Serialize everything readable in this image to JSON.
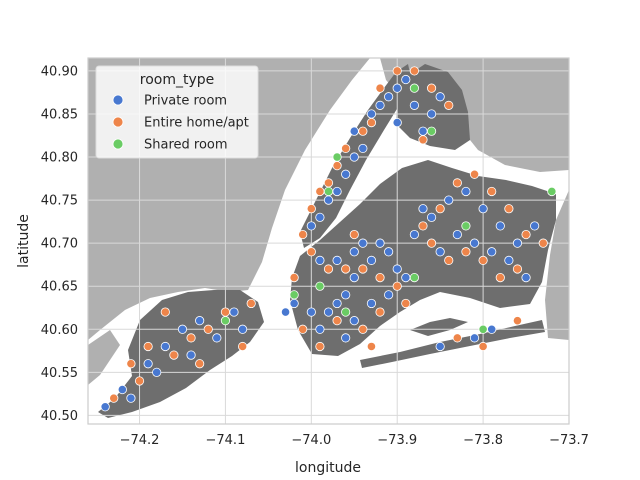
{
  "chart_data": {
    "type": "scatter",
    "title": "",
    "xlabel": "longitude",
    "ylabel": "latitude",
    "xlim": [
      -74.26,
      -73.7
    ],
    "ylim": [
      40.49,
      40.915
    ],
    "x_ticks": [
      -74.2,
      -74.1,
      -74.0,
      -73.9,
      -73.8,
      -73.7
    ],
    "x_tick_labels": [
      "−74.2",
      "−74.1",
      "−74.0",
      "−73.9",
      "−73.8",
      "−73.7"
    ],
    "y_ticks": [
      40.5,
      40.55,
      40.6,
      40.65,
      40.7,
      40.75,
      40.8,
      40.85,
      40.9
    ],
    "y_tick_labels": [
      "40.50",
      "40.55",
      "40.60",
      "40.65",
      "40.70",
      "40.75",
      "40.80",
      "40.85",
      "40.90"
    ],
    "grid": true,
    "background": "map of New York City",
    "legend": {
      "title": "room_type",
      "placement": "top-left"
    },
    "series": [
      {
        "name": "Private room",
        "color": "#4878d0",
        "points": [
          [
            -74.24,
            40.51
          ],
          [
            -74.22,
            40.53
          ],
          [
            -74.19,
            40.56
          ],
          [
            -74.17,
            40.58
          ],
          [
            -74.15,
            40.6
          ],
          [
            -74.13,
            40.61
          ],
          [
            -74.11,
            40.59
          ],
          [
            -74.09,
            40.62
          ],
          [
            -74.08,
            40.6
          ],
          [
            -74.18,
            40.55
          ],
          [
            -74.21,
            40.52
          ],
          [
            -74.14,
            40.57
          ],
          [
            -74.0,
            40.72
          ],
          [
            -73.99,
            40.73
          ],
          [
            -73.98,
            40.75
          ],
          [
            -73.97,
            40.76
          ],
          [
            -73.96,
            40.78
          ],
          [
            -73.95,
            40.8
          ],
          [
            -73.94,
            40.81
          ],
          [
            -73.95,
            40.83
          ],
          [
            -73.93,
            40.85
          ],
          [
            -73.92,
            40.86
          ],
          [
            -73.91,
            40.87
          ],
          [
            -73.9,
            40.88
          ],
          [
            -73.89,
            40.89
          ],
          [
            -73.88,
            40.86
          ],
          [
            -73.9,
            40.84
          ],
          [
            -73.87,
            40.83
          ],
          [
            -73.86,
            40.85
          ],
          [
            -73.85,
            40.87
          ],
          [
            -73.99,
            40.68
          ],
          [
            -73.97,
            40.68
          ],
          [
            -73.95,
            40.69
          ],
          [
            -73.94,
            40.7
          ],
          [
            -73.93,
            40.68
          ],
          [
            -73.92,
            40.7
          ],
          [
            -73.91,
            40.69
          ],
          [
            -73.9,
            40.67
          ],
          [
            -73.95,
            40.66
          ],
          [
            -73.96,
            40.64
          ],
          [
            -73.97,
            40.63
          ],
          [
            -73.98,
            40.62
          ],
          [
            -74.0,
            40.62
          ],
          [
            -74.02,
            40.63
          ],
          [
            -74.03,
            40.62
          ],
          [
            -73.99,
            40.6
          ],
          [
            -73.96,
            40.59
          ],
          [
            -73.95,
            40.61
          ],
          [
            -73.93,
            40.63
          ],
          [
            -73.91,
            40.64
          ],
          [
            -73.89,
            40.66
          ],
          [
            -73.88,
            40.71
          ],
          [
            -73.86,
            40.73
          ],
          [
            -73.84,
            40.75
          ],
          [
            -73.82,
            40.76
          ],
          [
            -73.8,
            40.74
          ],
          [
            -73.78,
            40.72
          ],
          [
            -73.76,
            40.7
          ],
          [
            -73.77,
            40.68
          ],
          [
            -73.79,
            40.69
          ],
          [
            -73.81,
            40.7
          ],
          [
            -73.83,
            40.71
          ],
          [
            -73.85,
            40.69
          ],
          [
            -73.87,
            40.74
          ],
          [
            -73.75,
            40.66
          ],
          [
            -73.74,
            40.72
          ],
          [
            -73.79,
            40.6
          ],
          [
            -73.81,
            40.59
          ],
          [
            -73.85,
            40.58
          ]
        ]
      },
      {
        "name": "Entire home/apt",
        "color": "#ee854a",
        "points": [
          [
            -74.23,
            40.52
          ],
          [
            -74.2,
            40.54
          ],
          [
            -74.16,
            40.57
          ],
          [
            -74.14,
            40.59
          ],
          [
            -74.12,
            40.6
          ],
          [
            -74.1,
            40.62
          ],
          [
            -74.07,
            40.63
          ],
          [
            -74.19,
            40.58
          ],
          [
            -74.17,
            40.62
          ],
          [
            -74.21,
            40.56
          ],
          [
            -74.13,
            40.56
          ],
          [
            -74.08,
            40.58
          ],
          [
            -74.01,
            40.71
          ],
          [
            -74.0,
            40.74
          ],
          [
            -73.99,
            40.76
          ],
          [
            -73.98,
            40.77
          ],
          [
            -73.97,
            40.79
          ],
          [
            -73.96,
            40.81
          ],
          [
            -73.94,
            40.83
          ],
          [
            -73.93,
            40.84
          ],
          [
            -73.92,
            40.88
          ],
          [
            -73.9,
            40.9
          ],
          [
            -73.88,
            40.9
          ],
          [
            -73.86,
            40.88
          ],
          [
            -73.84,
            40.86
          ],
          [
            -73.87,
            40.82
          ],
          [
            -74.0,
            40.69
          ],
          [
            -73.98,
            40.67
          ],
          [
            -73.96,
            40.67
          ],
          [
            -73.94,
            40.67
          ],
          [
            -73.92,
            40.66
          ],
          [
            -73.9,
            40.65
          ],
          [
            -73.97,
            40.61
          ],
          [
            -73.99,
            40.58
          ],
          [
            -74.01,
            40.6
          ],
          [
            -73.94,
            40.6
          ],
          [
            -73.92,
            40.62
          ],
          [
            -73.89,
            40.63
          ],
          [
            -73.93,
            40.58
          ],
          [
            -74.02,
            40.66
          ],
          [
            -73.95,
            40.71
          ],
          [
            -73.87,
            40.72
          ],
          [
            -73.85,
            40.74
          ],
          [
            -73.83,
            40.77
          ],
          [
            -73.81,
            40.78
          ],
          [
            -73.79,
            40.76
          ],
          [
            -73.77,
            40.74
          ],
          [
            -73.75,
            40.71
          ],
          [
            -73.73,
            40.7
          ],
          [
            -73.76,
            40.67
          ],
          [
            -73.78,
            40.66
          ],
          [
            -73.8,
            40.68
          ],
          [
            -73.82,
            40.69
          ],
          [
            -73.86,
            40.7
          ],
          [
            -73.84,
            40.68
          ],
          [
            -73.8,
            40.58
          ],
          [
            -73.83,
            40.59
          ],
          [
            -73.76,
            40.61
          ]
        ]
      },
      {
        "name": "Shared room",
        "color": "#6acc64",
        "points": [
          [
            -74.1,
            40.61
          ],
          [
            -73.97,
            40.8
          ],
          [
            -73.98,
            40.76
          ],
          [
            -73.88,
            40.88
          ],
          [
            -73.86,
            40.83
          ],
          [
            -73.99,
            40.65
          ],
          [
            -73.96,
            40.62
          ],
          [
            -73.88,
            40.66
          ],
          [
            -73.72,
            40.76
          ],
          [
            -73.8,
            40.6
          ],
          [
            -74.02,
            40.64
          ],
          [
            -73.82,
            40.72
          ]
        ]
      }
    ]
  }
}
